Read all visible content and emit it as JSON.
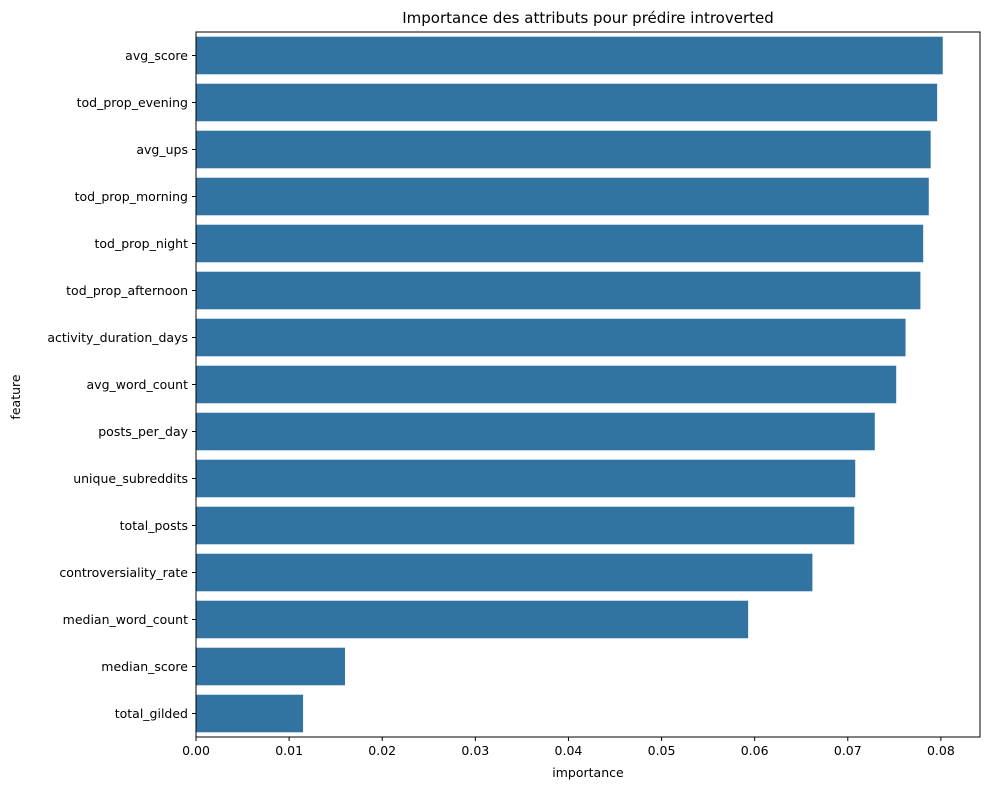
{
  "chart_data": {
    "type": "bar",
    "orientation": "horizontal",
    "title": "Importance des attributs pour prédire introverted",
    "xlabel": "importance",
    "ylabel": "feature",
    "categories": [
      "avg_score",
      "tod_prop_evening",
      "avg_ups",
      "tod_prop_morning",
      "tod_prop_night",
      "tod_prop_afternoon",
      "activity_duration_days",
      "avg_word_count",
      "posts_per_day",
      "unique_subreddits",
      "total_posts",
      "controversiality_rate",
      "median_word_count",
      "median_score",
      "total_gilded"
    ],
    "values": [
      0.0802,
      0.0796,
      0.0789,
      0.0787,
      0.0781,
      0.0778,
      0.0762,
      0.0752,
      0.0729,
      0.0708,
      0.0707,
      0.0662,
      0.0593,
      0.016,
      0.0115
    ],
    "xlim": [
      0,
      0.0842
    ],
    "xticks": [
      "0.00",
      "0.01",
      "0.02",
      "0.03",
      "0.04",
      "0.05",
      "0.06",
      "0.07",
      "0.08"
    ],
    "xtick_values": [
      0,
      0.01,
      0.02,
      0.03,
      0.04,
      0.05,
      0.06,
      0.07,
      0.08
    ],
    "grid": false,
    "colors": {
      "bar": "#3274a1",
      "axis": "#000000"
    }
  }
}
